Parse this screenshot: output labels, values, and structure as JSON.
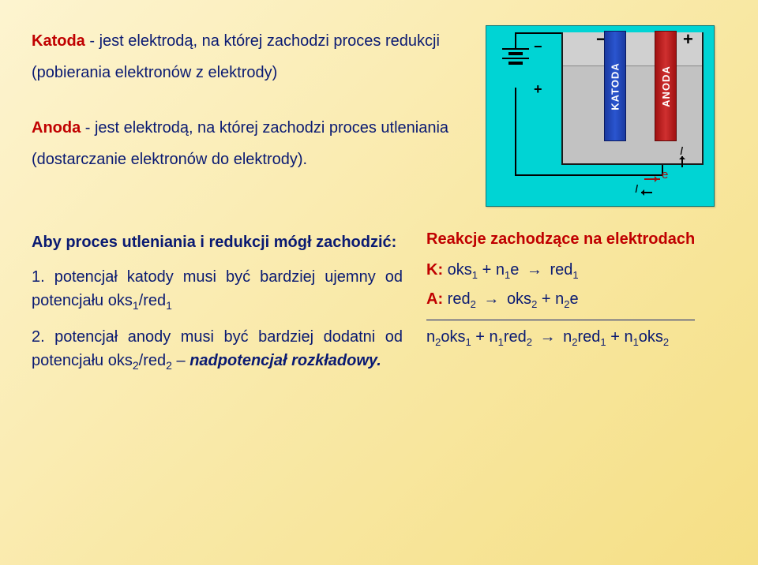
{
  "colors": {
    "text_blue": "#0a1a72",
    "accent_red": "#c00000",
    "bg_gradient_start": "#fdf4d0",
    "bg_gradient_end": "#f5df85",
    "diagram_bg": "#00d4d4",
    "cathode": "#2a55d0",
    "anode": "#d03030",
    "vessel_fill": "#d0d0d0"
  },
  "defs": {
    "katoda_term": "Katoda",
    "katoda_rest": " - jest elektrodą, na której zachodzi proces redukcji (pobierania elektronów z elektrody)",
    "anoda_term": "Anoda",
    "anoda_rest": " - jest elektrodą, na której zachodzi proces utleniania (dostarczanie elektronów do elektrody)."
  },
  "diagram": {
    "cathode_label": "KATODA",
    "anode_label": "ANODA",
    "minus": "−",
    "plus": "+",
    "I": "I",
    "e": "e"
  },
  "conditions": {
    "heading": "Aby proces utleniania i redukcji mógł zachodzić:",
    "item1_pre": "1. potencjał katody musi być bardziej ujemny od potencjału oks",
    "item1_sub1": "1",
    "item1_mid": "/red",
    "item1_sub2": "1",
    "item2_pre": "2. potencjał anody musi być bardziej dodatni od potencjału oks",
    "item2_sub1": "2",
    "item2_mid": "/red",
    "item2_sub2": "2",
    "item2_dash": " – ",
    "item2_nadp": "nadpotencjał rozkładowy."
  },
  "reactions": {
    "title": "Reakcje zachodzące na elektrodach",
    "K": "K:",
    "A": "A:",
    "arrow": "→",
    "k_lhs_a": "oks",
    "k_lhs_a_sub": "1",
    "k_lhs_plus": " + n",
    "k_lhs_b_sub": "1",
    "k_lhs_e": "e",
    "k_rhs_a": "red",
    "k_rhs_a_sub": "1",
    "a_lhs_a": "red",
    "a_lhs_a_sub": "2",
    "a_rhs_a": "oks",
    "a_rhs_a_sub": "2",
    "a_rhs_plus": " + n",
    "a_rhs_b_sub": "2",
    "a_rhs_e": "e",
    "sum_t1": "n",
    "sum_t1_sub": "2",
    "sum_t2": "oks",
    "sum_t2_sub": "1",
    "sum_plus": " + ",
    "sum_t3": "n",
    "sum_t3_sub": "1",
    "sum_t4": "red",
    "sum_t4_sub": "2",
    "sum_t5": "n",
    "sum_t5_sub": "2",
    "sum_t6": "red",
    "sum_t6_sub": "1",
    "sum_t7": "n",
    "sum_t7_sub": "1",
    "sum_t8": "oks",
    "sum_t8_sub": "2"
  }
}
